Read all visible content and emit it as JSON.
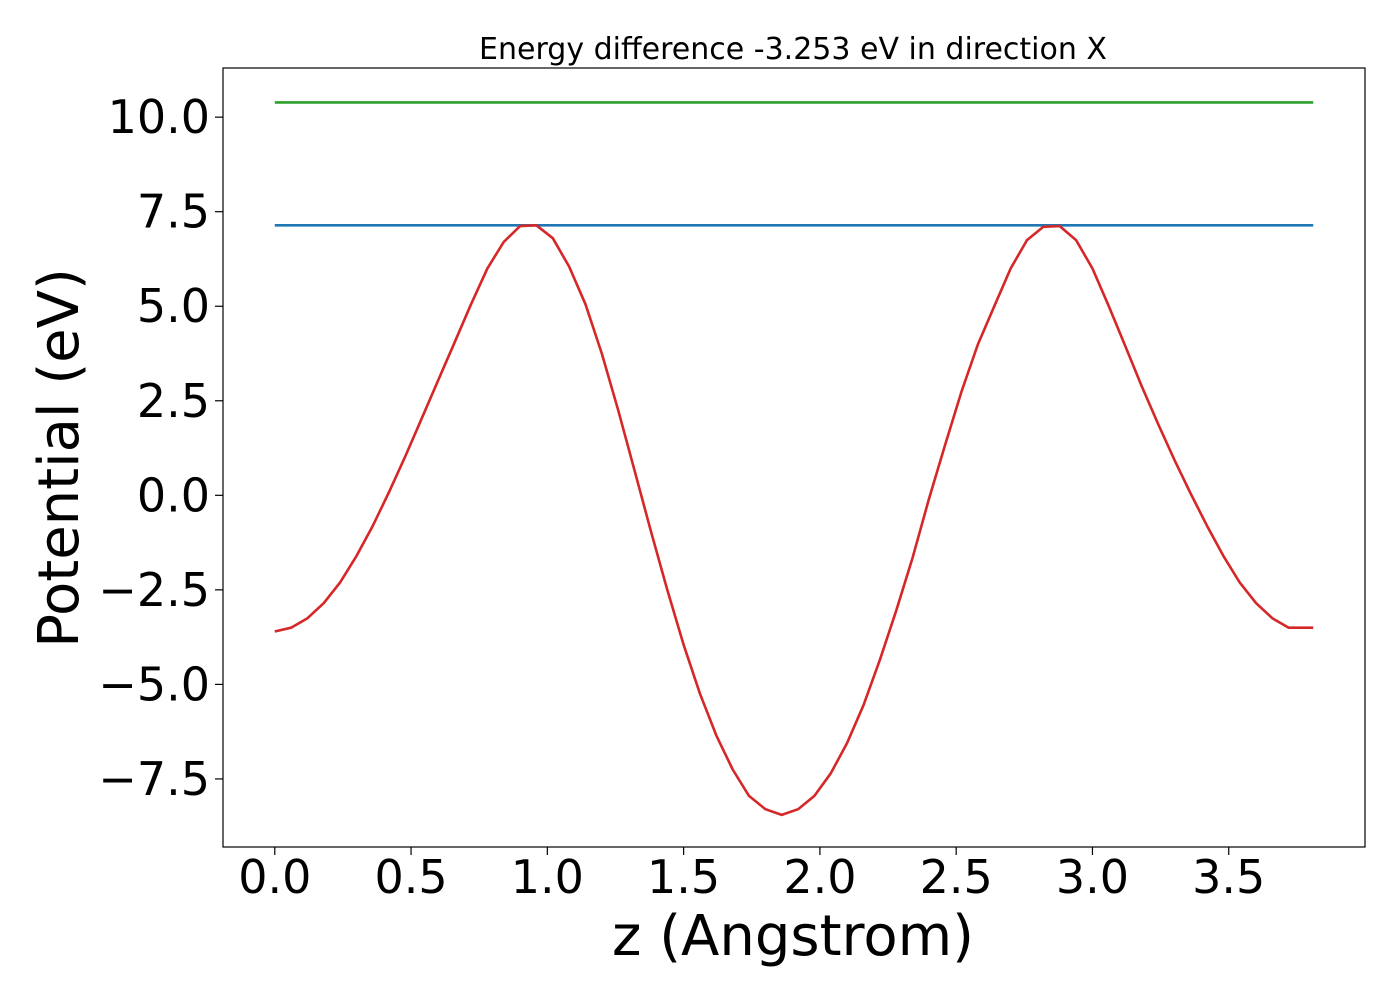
{
  "chart_data": {
    "type": "line",
    "title": "Energy difference -3.253 eV in direction X",
    "xlabel": "z (Angstrom)",
    "ylabel": "Potential (eV)",
    "xlim": [
      -0.19,
      4.0
    ],
    "ylim": [
      -9.3,
      11.3
    ],
    "grid": false,
    "xticks": [
      {
        "value": 0.0,
        "label": "0.0"
      },
      {
        "value": 0.5,
        "label": "0.5"
      },
      {
        "value": 1.0,
        "label": "1.0"
      },
      {
        "value": 1.5,
        "label": "1.5"
      },
      {
        "value": 2.0,
        "label": "2.0"
      },
      {
        "value": 2.5,
        "label": "2.5"
      },
      {
        "value": 3.0,
        "label": "3.0"
      },
      {
        "value": 3.5,
        "label": "3.5"
      }
    ],
    "yticks": [
      {
        "value": 10.0,
        "label": "10.0"
      },
      {
        "value": 7.5,
        "label": "7.5"
      },
      {
        "value": 5.0,
        "label": "5.0"
      },
      {
        "value": 2.5,
        "label": "2.5"
      },
      {
        "value": 0.0,
        "label": "0.0"
      },
      {
        "value": -2.5,
        "label": "−2.5"
      },
      {
        "value": -5.0,
        "label": "−5.0"
      },
      {
        "value": -7.5,
        "label": "−7.5"
      }
    ],
    "series": [
      {
        "color": "#2ca02c",
        "x": [
          0.0,
          3.81
        ],
        "y": [
          10.39,
          10.39
        ]
      },
      {
        "color": "#1f77b4",
        "x": [
          0.0,
          3.81
        ],
        "y": [
          7.14,
          7.14
        ]
      },
      {
        "color": "#d62728",
        "x": [
          0.0,
          0.06,
          0.12,
          0.18,
          0.24,
          0.3,
          0.36,
          0.42,
          0.48,
          0.54,
          0.6,
          0.66,
          0.72,
          0.78,
          0.84,
          0.9,
          0.96,
          1.02,
          1.08,
          1.14,
          1.2,
          1.26,
          1.32,
          1.38,
          1.44,
          1.5,
          1.56,
          1.62,
          1.68,
          1.74,
          1.8,
          1.86,
          1.92,
          1.98,
          2.04,
          2.1,
          2.16,
          2.22,
          2.28,
          2.34,
          2.4,
          2.46,
          2.52,
          2.58,
          2.64,
          2.7,
          2.76,
          2.82,
          2.88,
          2.94,
          3.0,
          3.06,
          3.12,
          3.18,
          3.24,
          3.3,
          3.36,
          3.42,
          3.48,
          3.54,
          3.6,
          3.66,
          3.72,
          3.81
        ],
        "y": [
          -3.6,
          -3.5,
          -3.25,
          -2.85,
          -2.3,
          -1.6,
          -0.8,
          0.1,
          1.05,
          2.05,
          3.05,
          4.05,
          5.05,
          6.0,
          6.7,
          7.12,
          7.14,
          6.8,
          6.05,
          5.05,
          3.75,
          2.25,
          0.65,
          -0.95,
          -2.5,
          -3.95,
          -5.25,
          -6.35,
          -7.25,
          -7.95,
          -8.3,
          -8.45,
          -8.3,
          -7.95,
          -7.35,
          -6.55,
          -5.55,
          -4.35,
          -3.05,
          -1.65,
          -0.1,
          1.35,
          2.75,
          4.0,
          5.0,
          6.0,
          6.75,
          7.1,
          7.12,
          6.75,
          6.0,
          5.0,
          3.95,
          2.9,
          1.9,
          0.95,
          0.05,
          -0.8,
          -1.6,
          -2.3,
          -2.85,
          -3.25,
          -3.5,
          -3.5
        ]
      }
    ]
  }
}
